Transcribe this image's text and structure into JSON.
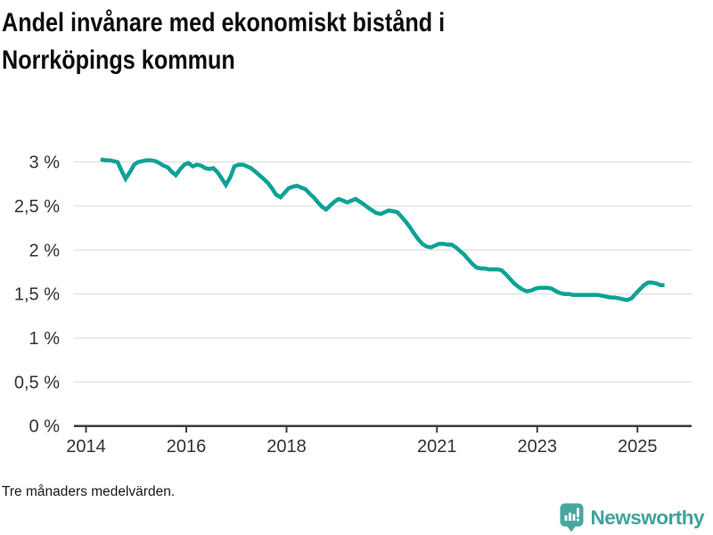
{
  "header": {
    "title": "Andel invånare med ekonomiskt bistånd i Norrköpings kommun",
    "title_lines": [
      "Andel invånare med ekonomiskt bistånd i",
      "Norrköpings kommun"
    ]
  },
  "footer": {
    "note": "Tre månaders medelvärden.",
    "brand": "Newsworthy"
  },
  "colors": {
    "line": "#0da295",
    "grid": "#e1e1e1",
    "axis": "#3d3d3d",
    "tick_text": "#333333",
    "title_text": "#0d0d0d",
    "brand_teal": "#3ea39b",
    "brand_icon": "#47a79f"
  },
  "chart_data": {
    "type": "line",
    "title": "Andel invånare med ekonomiskt bistånd i Norrköpings kommun",
    "xlabel": "",
    "ylabel": "",
    "grid": "horizontal",
    "legend": "none",
    "xlim": [
      2013.76,
      2026.08
    ],
    "ylim": [
      0,
      3
    ],
    "x_ticks": [
      {
        "v": 2014,
        "label": "2014"
      },
      {
        "v": 2016,
        "label": "2016"
      },
      {
        "v": 2018,
        "label": "2018"
      },
      {
        "v": 2021,
        "label": "2021"
      },
      {
        "v": 2023,
        "label": "2023"
      },
      {
        "v": 2025,
        "label": "2025"
      }
    ],
    "y_ticks": [
      {
        "v": 0,
        "label": "0 %"
      },
      {
        "v": 0.5,
        "label": "0,5 %"
      },
      {
        "v": 1,
        "label": "1 %"
      },
      {
        "v": 1.5,
        "label": "1,5 %"
      },
      {
        "v": 2,
        "label": "2 %"
      },
      {
        "v": 2.5,
        "label": "2,5 %"
      },
      {
        "v": 3,
        "label": "3 %"
      }
    ],
    "unit": "%",
    "series": [
      {
        "name": "Andel invånare med ekonomiskt bistånd",
        "color": "#0da295",
        "points": [
          [
            2014.29,
            3.03
          ],
          [
            2014.38,
            3.02
          ],
          [
            2014.46,
            3.02
          ],
          [
            2014.54,
            3.01
          ],
          [
            2014.63,
            3.0
          ],
          [
            2014.71,
            2.9
          ],
          [
            2014.79,
            2.81
          ],
          [
            2014.88,
            2.89
          ],
          [
            2014.96,
            2.97
          ],
          [
            2015.04,
            3.0
          ],
          [
            2015.13,
            3.01
          ],
          [
            2015.21,
            3.02
          ],
          [
            2015.29,
            3.02
          ],
          [
            2015.38,
            3.01
          ],
          [
            2015.46,
            2.99
          ],
          [
            2015.54,
            2.96
          ],
          [
            2015.63,
            2.94
          ],
          [
            2015.71,
            2.89
          ],
          [
            2015.79,
            2.85
          ],
          [
            2015.88,
            2.92
          ],
          [
            2015.96,
            2.97
          ],
          [
            2016.04,
            2.99
          ],
          [
            2016.13,
            2.95
          ],
          [
            2016.21,
            2.97
          ],
          [
            2016.29,
            2.96
          ],
          [
            2016.38,
            2.93
          ],
          [
            2016.46,
            2.92
          ],
          [
            2016.54,
            2.93
          ],
          [
            2016.63,
            2.88
          ],
          [
            2016.71,
            2.81
          ],
          [
            2016.79,
            2.74
          ],
          [
            2016.88,
            2.83
          ],
          [
            2016.96,
            2.95
          ],
          [
            2017.04,
            2.97
          ],
          [
            2017.13,
            2.97
          ],
          [
            2017.21,
            2.95
          ],
          [
            2017.29,
            2.93
          ],
          [
            2017.38,
            2.89
          ],
          [
            2017.46,
            2.85
          ],
          [
            2017.54,
            2.81
          ],
          [
            2017.63,
            2.76
          ],
          [
            2017.71,
            2.7
          ],
          [
            2017.79,
            2.63
          ],
          [
            2017.88,
            2.6
          ],
          [
            2017.96,
            2.65
          ],
          [
            2018.04,
            2.7
          ],
          [
            2018.13,
            2.72
          ],
          [
            2018.21,
            2.73
          ],
          [
            2018.29,
            2.71
          ],
          [
            2018.38,
            2.69
          ],
          [
            2018.46,
            2.64
          ],
          [
            2018.54,
            2.6
          ],
          [
            2018.63,
            2.54
          ],
          [
            2018.71,
            2.49
          ],
          [
            2018.79,
            2.46
          ],
          [
            2018.88,
            2.51
          ],
          [
            2018.96,
            2.55
          ],
          [
            2019.04,
            2.58
          ],
          [
            2019.13,
            2.56
          ],
          [
            2019.21,
            2.54
          ],
          [
            2019.29,
            2.56
          ],
          [
            2019.38,
            2.58
          ],
          [
            2019.46,
            2.55
          ],
          [
            2019.54,
            2.52
          ],
          [
            2019.63,
            2.48
          ],
          [
            2019.71,
            2.45
          ],
          [
            2019.79,
            2.42
          ],
          [
            2019.88,
            2.41
          ],
          [
            2019.96,
            2.43
          ],
          [
            2020.04,
            2.45
          ],
          [
            2020.13,
            2.44
          ],
          [
            2020.21,
            2.43
          ],
          [
            2020.29,
            2.38
          ],
          [
            2020.38,
            2.32
          ],
          [
            2020.46,
            2.26
          ],
          [
            2020.54,
            2.19
          ],
          [
            2020.63,
            2.12
          ],
          [
            2020.71,
            2.07
          ],
          [
            2020.79,
            2.04
          ],
          [
            2020.88,
            2.03
          ],
          [
            2020.96,
            2.05
          ],
          [
            2021.04,
            2.07
          ],
          [
            2021.13,
            2.07
          ],
          [
            2021.21,
            2.06
          ],
          [
            2021.29,
            2.06
          ],
          [
            2021.38,
            2.03
          ],
          [
            2021.46,
            1.99
          ],
          [
            2021.54,
            1.95
          ],
          [
            2021.63,
            1.89
          ],
          [
            2021.71,
            1.84
          ],
          [
            2021.79,
            1.8
          ],
          [
            2021.88,
            1.79
          ],
          [
            2021.96,
            1.79
          ],
          [
            2022.04,
            1.78
          ],
          [
            2022.13,
            1.78
          ],
          [
            2022.21,
            1.78
          ],
          [
            2022.29,
            1.77
          ],
          [
            2022.38,
            1.72
          ],
          [
            2022.46,
            1.67
          ],
          [
            2022.54,
            1.62
          ],
          [
            2022.63,
            1.58
          ],
          [
            2022.71,
            1.55
          ],
          [
            2022.79,
            1.53
          ],
          [
            2022.88,
            1.54
          ],
          [
            2022.96,
            1.56
          ],
          [
            2023.04,
            1.57
          ],
          [
            2023.13,
            1.57
          ],
          [
            2023.21,
            1.57
          ],
          [
            2023.29,
            1.56
          ],
          [
            2023.38,
            1.53
          ],
          [
            2023.46,
            1.51
          ],
          [
            2023.54,
            1.5
          ],
          [
            2023.63,
            1.5
          ],
          [
            2023.71,
            1.49
          ],
          [
            2023.79,
            1.49
          ],
          [
            2023.88,
            1.49
          ],
          [
            2023.96,
            1.49
          ],
          [
            2024.04,
            1.49
          ],
          [
            2024.13,
            1.49
          ],
          [
            2024.21,
            1.49
          ],
          [
            2024.29,
            1.48
          ],
          [
            2024.38,
            1.47
          ],
          [
            2024.46,
            1.46
          ],
          [
            2024.54,
            1.46
          ],
          [
            2024.63,
            1.45
          ],
          [
            2024.71,
            1.44
          ],
          [
            2024.79,
            1.43
          ],
          [
            2024.88,
            1.45
          ],
          [
            2024.96,
            1.5
          ],
          [
            2025.04,
            1.55
          ],
          [
            2025.13,
            1.6
          ],
          [
            2025.21,
            1.63
          ],
          [
            2025.29,
            1.63
          ],
          [
            2025.38,
            1.62
          ],
          [
            2025.46,
            1.6
          ],
          [
            2025.54,
            1.6
          ]
        ]
      }
    ]
  }
}
